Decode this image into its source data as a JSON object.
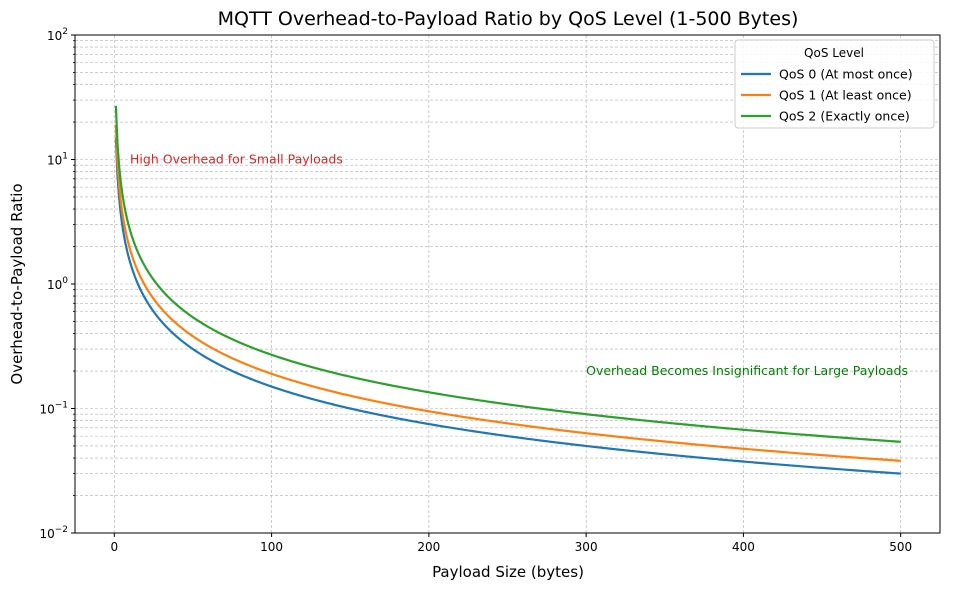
{
  "chart_data": {
    "type": "line",
    "title": "MQTT Overhead-to-Payload Ratio by QoS Level (1-500 Bytes)",
    "xlabel": "Payload Size (bytes)",
    "ylabel": "Overhead-to-Payload Ratio",
    "xlim": [
      -25,
      525
    ],
    "ylim": [
      0.01,
      100
    ],
    "yscale": "log",
    "grid": true,
    "x_ticks": [
      0,
      100,
      200,
      300,
      400,
      500
    ],
    "x_tick_labels": [
      "0",
      "100",
      "200",
      "300",
      "400",
      "500"
    ],
    "y_ticks": [
      0.01,
      0.1,
      1,
      10,
      100
    ],
    "y_tick_labels": [
      {
        "base": "10",
        "exp": "−2"
      },
      {
        "base": "10",
        "exp": "−1"
      },
      {
        "base": "10",
        "exp": "0"
      },
      {
        "base": "10",
        "exp": "1"
      },
      {
        "base": "10",
        "exp": "2"
      }
    ],
    "legend": {
      "title": "QoS Level",
      "position": "top-right"
    },
    "series": [
      {
        "name": "QoS 0 (At most once)",
        "color": "#1f77b4",
        "overhead_bytes": 15,
        "x": [
          1,
          2,
          5,
          10,
          20,
          50,
          100,
          200,
          300,
          400,
          500
        ],
        "values": [
          15,
          7.5,
          3,
          1.5,
          0.75,
          0.3,
          0.15,
          0.075,
          0.05,
          0.0375,
          0.03
        ]
      },
      {
        "name": "QoS 1 (At least once)",
        "color": "#ff7f0e",
        "overhead_bytes": 19,
        "x": [
          1,
          2,
          5,
          10,
          20,
          50,
          100,
          200,
          300,
          400,
          500
        ],
        "values": [
          19,
          9.5,
          3.8,
          1.9,
          0.95,
          0.38,
          0.19,
          0.095,
          0.0633,
          0.0475,
          0.038
        ]
      },
      {
        "name": "QoS 2 (Exactly once)",
        "color": "#2ca02c",
        "overhead_bytes": 27,
        "x": [
          1,
          2,
          5,
          10,
          20,
          50,
          100,
          200,
          300,
          400,
          500
        ],
        "values": [
          27,
          13.5,
          5.4,
          2.7,
          1.35,
          0.54,
          0.27,
          0.135,
          0.09,
          0.0675,
          0.054
        ]
      }
    ],
    "annotations": [
      {
        "text": "High Overhead for Small Payloads",
        "x": 10,
        "y": 10,
        "color": "#d62728"
      },
      {
        "text": "Overhead Becomes Insignificant for Large Payloads",
        "x": 300,
        "y": 0.2,
        "color": "#008000"
      }
    ]
  }
}
